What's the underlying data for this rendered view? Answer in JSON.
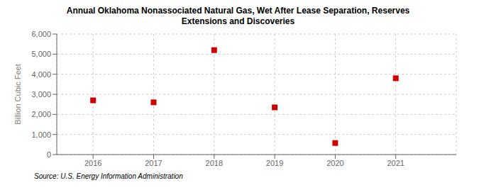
{
  "chart_data": {
    "type": "scatter",
    "title": "Annual Oklahoma Nonassociated Natural Gas, Wet After Lease Separation, Reserves\nExtensions and Discoveries",
    "ylabel": "Billion Cubic Feet",
    "source": "Source: U.S. Energy Information Administration",
    "x": [
      2016,
      2017,
      2018,
      2019,
      2020,
      2021
    ],
    "values": [
      2700,
      2600,
      5200,
      2350,
      575,
      3800
    ],
    "xlim": [
      2015.4,
      2022.0
    ],
    "xticks": [
      2016,
      2017,
      2018,
      2019,
      2020,
      2021
    ],
    "ylim": [
      0,
      6000
    ],
    "yticks": [
      0,
      {
        "value": 1000,
        "label": "1,000"
      },
      {
        "value": 2000,
        "label": "2,000"
      },
      {
        "value": 3000,
        "label": "3,000"
      },
      {
        "value": 4000,
        "label": "4,000"
      },
      {
        "value": 5000,
        "label": "5,000"
      },
      {
        "value": 6000,
        "label": "6,000"
      }
    ],
    "color": "#cc0000",
    "marker": "square",
    "grid": true
  }
}
